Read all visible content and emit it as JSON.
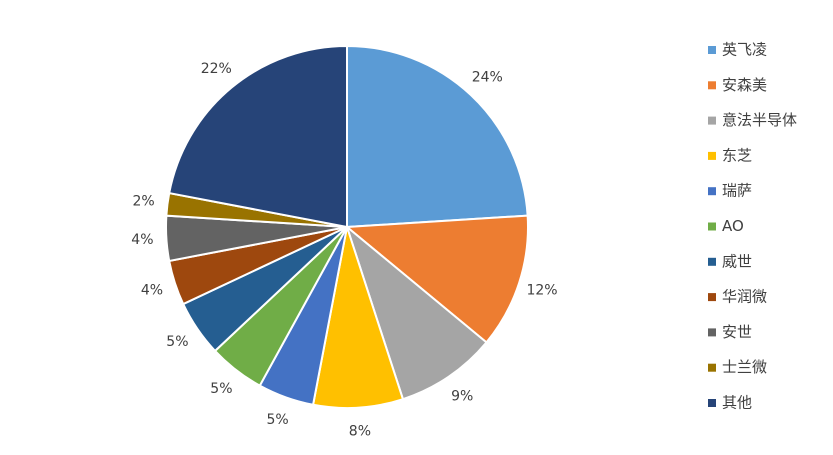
{
  "chart_data": {
    "type": "pie",
    "categories": [
      "英飞凌",
      "安森美",
      "意法半导体",
      "东芝",
      "瑞萨",
      "AO",
      "威世",
      "华润微",
      "安世",
      "士兰微",
      "其他"
    ],
    "values": [
      24,
      12,
      9,
      8,
      5,
      5,
      5,
      4,
      4,
      2,
      22
    ],
    "labels": [
      "24%",
      "12%",
      "9%",
      "8%",
      "5%",
      "5%",
      "5%",
      "4%",
      "4%",
      "2%",
      "22%"
    ],
    "colors": [
      "#5B9BD5",
      "#ED7D31",
      "#A5A5A5",
      "#FFC000",
      "#4472C4",
      "#70AD47",
      "#255E91",
      "#9E480E",
      "#636363",
      "#997300",
      "#264478"
    ],
    "legend_position": "right"
  }
}
